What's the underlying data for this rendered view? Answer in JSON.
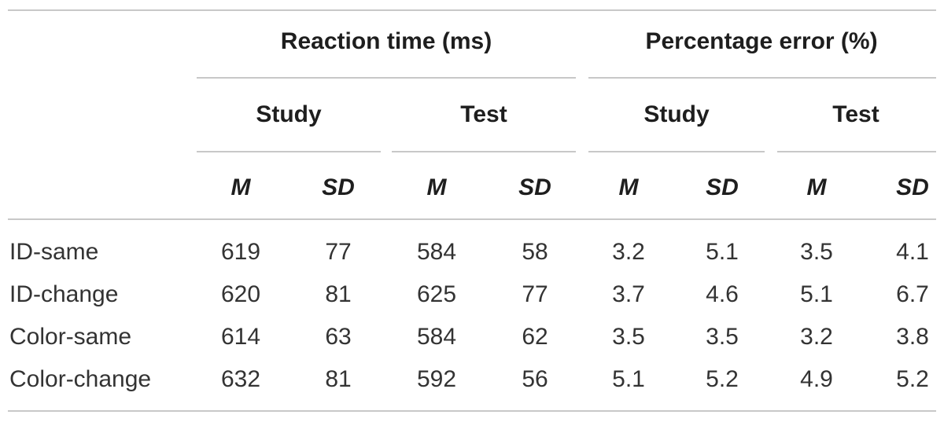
{
  "table": {
    "group_headers": [
      "Reaction time (ms)",
      "Percentage error (%)"
    ],
    "sub_headers": [
      "Study",
      "Test",
      "Study",
      "Test"
    ],
    "stat_headers": [
      "M",
      "SD",
      "M",
      "SD",
      "M",
      "SD",
      "M",
      "SD"
    ],
    "rows": [
      {
        "label": "ID-same",
        "values": [
          "619",
          "77",
          "584",
          "58",
          "3.2",
          "5.1",
          "3.5",
          "4.1"
        ]
      },
      {
        "label": "ID-change",
        "values": [
          "620",
          "81",
          "625",
          "77",
          "3.7",
          "4.6",
          "5.1",
          "6.7"
        ]
      },
      {
        "label": "Color-same",
        "values": [
          "614",
          "63",
          "584",
          "62",
          "3.5",
          "3.5",
          "3.2",
          "3.8"
        ]
      },
      {
        "label": "Color-change",
        "values": [
          "632",
          "81",
          "592",
          "56",
          "5.1",
          "5.2",
          "4.9",
          "5.2"
        ]
      }
    ]
  }
}
